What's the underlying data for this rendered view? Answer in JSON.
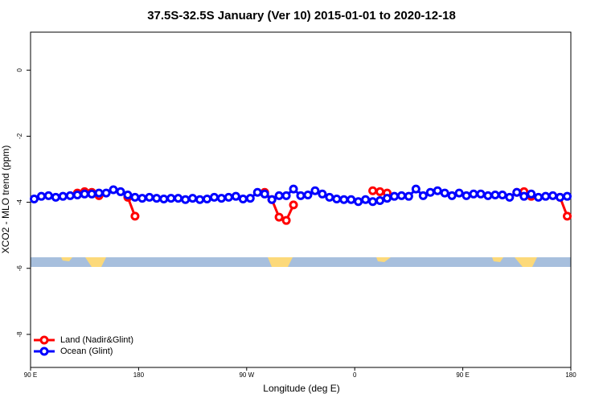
{
  "chart_data": {
    "type": "line",
    "title": "37.5S-32.5S January (Ver 10)   2015-01-01 to 2020-12-18",
    "x_label": "Longitude (deg E)",
    "y_label": "XCO2 - MLO trend (ppm)",
    "x": [
      93,
      99,
      105,
      111,
      117,
      123,
      129,
      135,
      141,
      147,
      153,
      159,
      165,
      171,
      177,
      183,
      189,
      195,
      201,
      207,
      213,
      219,
      225,
      231,
      237,
      243,
      249,
      255,
      261,
      267,
      273,
      279,
      285,
      291,
      297,
      303,
      309,
      315,
      321,
      327,
      333,
      339,
      345,
      351,
      357,
      363,
      369,
      375,
      381,
      387,
      393,
      399,
      405,
      411,
      417,
      423,
      429,
      435,
      441,
      447,
      453,
      459,
      465,
      471,
      477,
      483,
      489,
      495,
      501,
      507,
      513,
      519,
      525,
      531,
      537
    ],
    "series": [
      {
        "name": "Land (Nadir&Glint)",
        "color": "#ff0000",
        "values": [
          null,
          null,
          null,
          null,
          null,
          null,
          -3.72,
          -3.68,
          -3.7,
          -3.8,
          null,
          null,
          null,
          -3.85,
          -4.42,
          null,
          null,
          null,
          null,
          null,
          null,
          null,
          null,
          null,
          null,
          null,
          null,
          null,
          null,
          null,
          null,
          null,
          -3.7,
          -3.92,
          -4.45,
          -4.55,
          -4.08,
          null,
          null,
          null,
          null,
          null,
          null,
          null,
          null,
          null,
          null,
          -3.65,
          -3.68,
          -3.72,
          null,
          null,
          null,
          null,
          null,
          null,
          null,
          null,
          null,
          null,
          null,
          null,
          null,
          null,
          null,
          null,
          null,
          -3.7,
          -3.68,
          -3.82,
          null,
          null,
          null,
          -3.85,
          -4.42
        ]
      },
      {
        "name": "Ocean (Glint)",
        "color": "#0000ff",
        "values": [
          -3.9,
          -3.82,
          -3.8,
          -3.85,
          -3.82,
          -3.8,
          -3.78,
          -3.75,
          -3.75,
          -3.72,
          -3.72,
          -3.62,
          -3.68,
          -3.78,
          -3.85,
          -3.88,
          -3.85,
          -3.88,
          -3.9,
          -3.88,
          -3.88,
          -3.92,
          -3.88,
          -3.92,
          -3.9,
          -3.85,
          -3.88,
          -3.85,
          -3.82,
          -3.9,
          -3.88,
          -3.7,
          -3.75,
          -3.92,
          -3.8,
          -3.8,
          -3.6,
          -3.8,
          -3.78,
          -3.65,
          -3.75,
          -3.85,
          -3.9,
          -3.92,
          -3.92,
          -3.98,
          -3.92,
          -3.98,
          -3.95,
          -3.88,
          -3.82,
          -3.8,
          -3.82,
          -3.6,
          -3.8,
          -3.7,
          -3.65,
          -3.72,
          -3.8,
          -3.72,
          -3.8,
          -3.75,
          -3.75,
          -3.8,
          -3.78,
          -3.78,
          -3.85,
          -3.7,
          -3.82,
          -3.75,
          -3.85,
          -3.82,
          -3.8,
          -3.85,
          -3.82
        ]
      }
    ],
    "xlim": [
      90,
      540
    ],
    "xticks": [
      {
        "value": 90,
        "label": "90 E"
      },
      180,
      {
        "value": 270,
        "label": "90 W"
      },
      {
        "value": 360,
        "label": "0"
      },
      {
        "value": 450,
        "label": "90 E"
      },
      {
        "value": 540,
        "label": "180"
      }
    ],
    "ylim": [
      -9,
      1.15
    ],
    "yticks": [
      0,
      -2,
      -4,
      -6,
      -8
    ],
    "legend": "bottom-left"
  }
}
